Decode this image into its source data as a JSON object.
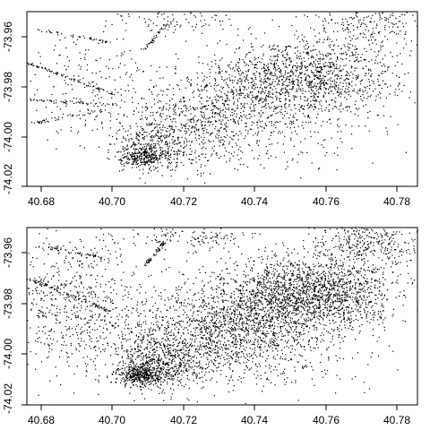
{
  "chart_data": [
    {
      "type": "scatter",
      "title": "",
      "xlabel": "",
      "ylabel": "",
      "xlim": [
        40.675,
        40.785
      ],
      "ylim": [
        -74.025,
        -73.955
      ],
      "xticks": [
        40.68,
        40.7,
        40.72,
        40.74,
        40.76,
        40.78
      ],
      "xtick_labels": [
        "40.68",
        "40.70",
        "40.72",
        "40.74",
        "40.76",
        "40.78"
      ],
      "yticks": [
        -73.96,
        -73.98,
        -74.0,
        -74.02
      ],
      "ytick_labels": [
        "-73.96",
        "-73.98",
        "-74.00",
        "-74.02"
      ],
      "point_color": "#000000",
      "grid": false,
      "legend": "none",
      "density": "sparse",
      "series": [
        {
          "clusters": [
            {
              "x": 40.755,
              "y": -73.98,
              "sx": 0.012,
              "sy": 0.007,
              "n": 1000
            },
            {
              "x": 40.74,
              "y": -73.99,
              "sx": 0.015,
              "sy": 0.01,
              "n": 700
            },
            {
              "x": 40.725,
              "y": -73.998,
              "sx": 0.012,
              "sy": 0.008,
              "n": 500
            },
            {
              "x": 40.712,
              "y": -74.008,
              "sx": 0.006,
              "sy": 0.005,
              "n": 350
            },
            {
              "x": 40.707,
              "y": -74.013,
              "sx": 0.003,
              "sy": 0.002,
              "n": 250
            },
            {
              "x": 40.77,
              "y": -73.96,
              "sx": 0.008,
              "sy": 0.006,
              "n": 250
            },
            {
              "x": 40.69,
              "y": -73.985,
              "sx": 0.01,
              "sy": 0.012,
              "n": 200
            },
            {
              "x": 40.72,
              "y": -73.958,
              "sx": 0.01,
              "sy": 0.003,
              "n": 100
            },
            {
              "x": 40.73,
              "y": -74.012,
              "sx": 0.02,
              "sy": 0.005,
              "n": 80
            }
          ],
          "lines": [
            {
              "x1": 40.675,
              "y1": -73.975,
              "x2": 40.699,
              "y2": -73.988,
              "n": 70
            },
            {
              "x1": 40.675,
              "y1": -73.99,
              "x2": 40.7,
              "y2": -73.992,
              "n": 50
            },
            {
              "x1": 40.675,
              "y1": -74.0,
              "x2": 40.698,
              "y2": -73.994,
              "n": 40
            },
            {
              "x1": 40.678,
              "y1": -73.962,
              "x2": 40.698,
              "y2": -73.967,
              "n": 40
            },
            {
              "x1": 40.708,
              "y1": -73.97,
              "x2": 40.714,
              "y2": -73.96,
              "n": 40
            }
          ]
        }
      ]
    },
    {
      "type": "scatter",
      "title": "",
      "xlabel": "",
      "ylabel": "",
      "xlim": [
        40.675,
        40.785
      ],
      "ylim": [
        -74.025,
        -73.955
      ],
      "xticks": [
        40.68,
        40.7,
        40.72,
        40.74,
        40.76,
        40.78
      ],
      "xtick_labels": [
        "40.68",
        "40.70",
        "40.72",
        "40.74",
        "40.76",
        "40.78"
      ],
      "yticks": [
        -73.96,
        -73.98,
        -74.0,
        -74.02
      ],
      "ytick_labels": [
        "-73.96",
        "-73.98",
        "-74.00",
        "-74.02"
      ],
      "point_color": "#000000",
      "grid": false,
      "legend": "none",
      "density": "dense",
      "series": [
        {
          "clusters": [
            {
              "x": 40.755,
              "y": -73.98,
              "sx": 0.012,
              "sy": 0.007,
              "n": 1500
            },
            {
              "x": 40.74,
              "y": -73.99,
              "sx": 0.015,
              "sy": 0.01,
              "n": 1200
            },
            {
              "x": 40.725,
              "y": -73.998,
              "sx": 0.012,
              "sy": 0.008,
              "n": 800
            },
            {
              "x": 40.712,
              "y": -74.008,
              "sx": 0.006,
              "sy": 0.005,
              "n": 500
            },
            {
              "x": 40.707,
              "y": -74.013,
              "sx": 0.003,
              "sy": 0.002,
              "n": 350
            },
            {
              "x": 40.77,
              "y": -73.96,
              "sx": 0.008,
              "sy": 0.006,
              "n": 450
            },
            {
              "x": 40.688,
              "y": -73.985,
              "sx": 0.011,
              "sy": 0.013,
              "n": 700
            },
            {
              "x": 40.72,
              "y": -73.958,
              "sx": 0.01,
              "sy": 0.003,
              "n": 150
            },
            {
              "x": 40.73,
              "y": -74.012,
              "sx": 0.02,
              "sy": 0.005,
              "n": 150
            }
          ],
          "lines": [
            {
              "x1": 40.675,
              "y1": -73.975,
              "x2": 40.699,
              "y2": -73.988,
              "n": 80
            },
            {
              "x1": 40.678,
              "y1": -73.962,
              "x2": 40.698,
              "y2": -73.967,
              "n": 50
            },
            {
              "x1": 40.708,
              "y1": -73.97,
              "x2": 40.714,
              "y2": -73.96,
              "n": 50
            }
          ]
        }
      ]
    }
  ]
}
